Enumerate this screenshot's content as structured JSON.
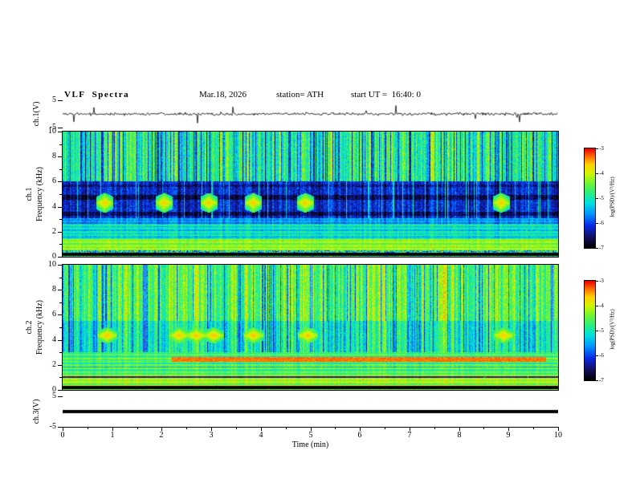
{
  "title": {
    "main": "VLF  Spectra",
    "date": "Mar.18, 2026",
    "station": "station= ATH",
    "start_ut": "start UT =  16:40: 0"
  },
  "xaxis": {
    "label": "Time (min)",
    "min": 0,
    "max": 10,
    "major_ticks": [
      0,
      1,
      2,
      3,
      4,
      5,
      6,
      7,
      8,
      9,
      10
    ]
  },
  "panels": {
    "ch1_wave": {
      "ylabel": "ch.1(V)",
      "ymin": -5,
      "ymax": 5,
      "yticks": [
        5,
        -5
      ]
    },
    "ch1_spec": {
      "ylabel_lines": [
        "ch.1",
        "Frequency (kHz)"
      ],
      "ymin": 0,
      "ymax": 10,
      "yticks": [
        10,
        8,
        6,
        4,
        2,
        0
      ]
    },
    "ch2_spec": {
      "ylabel_lines": [
        "ch.2",
        "Frequency (kHz)"
      ],
      "ymin": 0,
      "ymax": 10,
      "yticks": [
        10,
        8,
        6,
        4,
        2,
        0
      ]
    },
    "ch3_wave": {
      "ylabel": "ch.3(V)",
      "ymin": -5,
      "ymax": 5,
      "yticks": [
        5,
        -5
      ]
    }
  },
  "colorbars": [
    {
      "label": "log(PSD)/(V²/Hz)",
      "ticks": [
        -3,
        -4,
        -5,
        -6,
        -7
      ],
      "vmax": -3,
      "vmin": -7
    },
    {
      "label": "log(PSD)/(V²/Hz)",
      "ticks": [
        -3,
        -4,
        -5,
        -6,
        -7
      ],
      "vmax": -3,
      "vmin": -7
    }
  ],
  "colormap": [
    [
      0.0,
      "#000000"
    ],
    [
      0.1,
      "#14105a"
    ],
    [
      0.22,
      "#0a28e6"
    ],
    [
      0.34,
      "#0096ff"
    ],
    [
      0.45,
      "#00e1e1"
    ],
    [
      0.55,
      "#28f082"
    ],
    [
      0.65,
      "#6ef532"
    ],
    [
      0.75,
      "#d2f500"
    ],
    [
      0.84,
      "#ffd200"
    ],
    [
      0.92,
      "#ff6e00"
    ],
    [
      1.0,
      "#eb0000"
    ]
  ],
  "chart_data": [
    {
      "id": "ch1_waveform",
      "type": "line",
      "ylabel": "ch.1(V)",
      "ylim": [
        -5,
        5
      ],
      "xlim": [
        0,
        10
      ],
      "seed": 5,
      "noise_amp": 0.55,
      "spike_prob": 0.018,
      "spike_amp": 3.2,
      "line_color": "#000000",
      "description": "Broadband noise voltage trace near 0 V with intermittent impulsive spikes up to about ±4 V across 0–10 min"
    },
    {
      "id": "ch1_spectrogram",
      "type": "heatmap",
      "ylabel": "ch.1 Frequency (kHz)",
      "ylim": [
        0,
        10
      ],
      "xlim": [
        0,
        10
      ],
      "value_range": [
        -7,
        -3
      ],
      "seed": 21,
      "bands": [
        {
          "f": [
            6,
            10
          ],
          "base": -4.85,
          "col_amp": 1.15,
          "noise": 0.85,
          "blue_streak_prob": 0.17,
          "blue_streak_drop": 1.35
        },
        {
          "f": [
            3.1,
            6
          ],
          "base": -6.2,
          "col_amp": 0.55,
          "noise": 0.7,
          "bright_streak_prob": 0.08,
          "bright_streak_gain": 1.1
        },
        {
          "f": [
            2.6,
            3.1
          ],
          "base": -5.6,
          "col_amp": 0.4,
          "noise": 0.5,
          "stripe_amp": 0.4
        },
        {
          "f": [
            1.4,
            2.6
          ],
          "base": -5.15,
          "col_amp": 0.3,
          "noise": 0.45,
          "stripe_amp": 0.55
        },
        {
          "f": [
            0.5,
            1.4
          ],
          "base": -4.3,
          "col_amp": 0.2,
          "noise": 0.4,
          "stripe_amp": 0.5,
          "red_speck": 0.004
        },
        {
          "f": [
            0.35,
            0.5
          ],
          "base": -5.2,
          "col_amp": 0,
          "noise": 2.2,
          "red_speck": 0.02
        },
        {
          "f": [
            0.07,
            0.35
          ],
          "base": -7,
          "col_amp": 0,
          "noise": 0.12
        },
        {
          "f": [
            0,
            0.07
          ],
          "base": -4.8,
          "col_amp": 0,
          "noise": 1.5
        }
      ],
      "hlines": [
        {
          "f": [
            4.55,
            4.95
          ],
          "dp": -0.5
        },
        {
          "f": [
            3.25,
            3.6
          ],
          "dp": -0.45
        },
        {
          "f": [
            5.55,
            5.75
          ],
          "dp": -0.3
        }
      ],
      "events": {
        "times": [
          0.85,
          2.05,
          2.95,
          3.85,
          4.9,
          8.85
        ],
        "halfwidth": 0.17,
        "f_center": 4.3,
        "f_halfheight": 0.8,
        "peak": -3.55
      },
      "description": "Green noisy band above 6 kHz crossed by blue vertical sferic streaks; dark blue quiet band 3–6 kHz; cyan 1.5–3 kHz; bright green below 1.5 kHz; black band near 0 kHz; periodic yellow bursts near 4.3 kHz at ~0.85, 2.05, 2.95, 3.85, 4.9 and 8.85 min"
    },
    {
      "id": "ch2_spectrogram",
      "type": "heatmap",
      "ylabel": "ch.2 Frequency (kHz)",
      "ylim": [
        0,
        10
      ],
      "xlim": [
        0,
        10
      ],
      "value_range": [
        -7,
        -3
      ],
      "seed": 77,
      "bands": [
        {
          "f": [
            5.5,
            10
          ],
          "base": -4.6,
          "col_amp": 0.95,
          "noise": 0.8,
          "blue_streak_prob": 0.11,
          "blue_streak_drop": 1.2
        },
        {
          "f": [
            3.0,
            5.5
          ],
          "base": -5.05,
          "col_amp": 0.95,
          "noise": 0.7,
          "blue_streak_prob": 0.08,
          "blue_streak_drop": 0.95
        },
        {
          "f": [
            1.15,
            3.0
          ],
          "base": -4.65,
          "col_amp": 0.25,
          "noise": 0.4,
          "stripe_amp": 0.7
        },
        {
          "f": [
            0.32,
            1.15
          ],
          "base": -4.25,
          "col_amp": 0.2,
          "noise": 0.4,
          "stripe_amp": 0.65,
          "red_speck": 0.003
        },
        {
          "f": [
            0.08,
            0.32
          ],
          "base": -7,
          "col_amp": 0,
          "noise": 0.15
        },
        {
          "f": [
            0,
            0.08
          ],
          "base": -4.4,
          "col_amp": 0,
          "noise": 0.9
        }
      ],
      "hlines": [
        {
          "f": [
            0.98,
            1.12
          ],
          "dp": -1.7
        },
        {
          "f": [
            1.78,
            1.88
          ],
          "dp": -0.55
        }
      ],
      "rects": [
        {
          "f": [
            2.27,
            2.62
          ],
          "t": [
            2.2,
            9.75
          ],
          "p": -3.35,
          "noise": 0.3
        }
      ],
      "events": {
        "times": [
          0.9,
          2.35,
          2.7,
          3.05,
          3.85,
          4.95,
          8.9
        ],
        "halfwidth": 0.2,
        "f_center": 4.35,
        "f_halfheight": 0.65,
        "peak": -3.5
      },
      "description": "Brighter green spectrogram; cyan/blue streaked 3–5.5 kHz band with wide yellow bursts near 4.4 kHz; strong horizontal green/yellow striping below 3 kHz; dark red band near 2.4 kHz after ~2.2 min; black band near 0 kHz"
    },
    {
      "id": "ch3_waveform",
      "type": "line",
      "ylabel": "ch.3(V)",
      "ylim": [
        -5,
        5
      ],
      "xlim": [
        0,
        10
      ],
      "flat_value": 0,
      "line_width": 4,
      "line_color": "#000000",
      "description": "Completely flat saturated trace at a constant level across the full record"
    }
  ]
}
